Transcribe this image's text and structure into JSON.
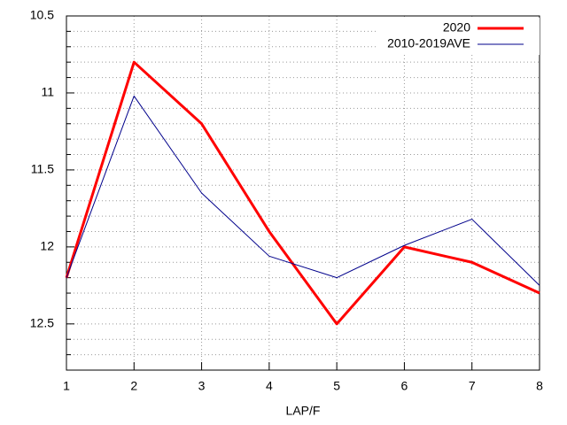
{
  "chart_data": {
    "type": "line",
    "xlabel": "LAP/F",
    "x": [
      1,
      2,
      3,
      4,
      5,
      6,
      7,
      8
    ],
    "series": [
      {
        "name": "2020",
        "color": "#ff0000",
        "width": 3,
        "values": [
          12.2,
          10.8,
          11.2,
          11.9,
          12.5,
          12.0,
          12.1,
          12.3
        ]
      },
      {
        "name": "2010-2019AVE",
        "color": "#00008b",
        "width": 1,
        "values": [
          12.2,
          11.02,
          11.65,
          12.06,
          12.2,
          11.99,
          11.82,
          12.25
        ]
      }
    ],
    "xlim": [
      1,
      8
    ],
    "xticks": [
      1,
      2,
      3,
      4,
      5,
      6,
      7,
      8
    ],
    "ylim": [
      10.5,
      12.8
    ],
    "yticks": [
      10.5,
      11,
      11.5,
      12,
      12.5
    ],
    "yminorticks": [
      10.6,
      10.7,
      10.8,
      10.9,
      11.1,
      11.2,
      11.3,
      11.4,
      11.6,
      11.7,
      11.8,
      11.9,
      12.1,
      12.2,
      12.3,
      12.4,
      12.6,
      12.7
    ],
    "y_reversed": true,
    "grid": true,
    "legend": "top-right"
  }
}
